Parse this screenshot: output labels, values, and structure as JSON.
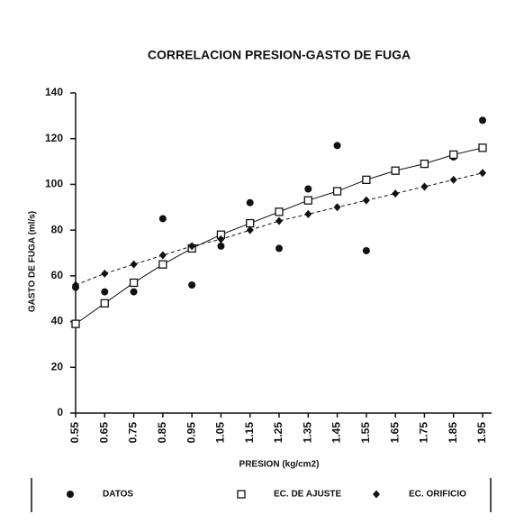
{
  "chart_data": {
    "type": "line",
    "title": "CORRELACION PRESION-GASTO DE FUGA",
    "x_label": "PRESION (kg/cm2)",
    "y_label": "GASTO DE FUGA (ml/s)",
    "categories": [
      "0.55",
      "0.65",
      "0.75",
      "0.85",
      "0.95",
      "1.05",
      "1.15",
      "1.25",
      "1.35",
      "1.45",
      "1.55",
      "1.65",
      "1.75",
      "1.85",
      "1.95"
    ],
    "series": [
      {
        "name": "DATOS",
        "color": "#111111",
        "marker": "circle",
        "line": false,
        "values": [
          55,
          53,
          53,
          85,
          56,
          73,
          92,
          72,
          98,
          117,
          71,
          null,
          null,
          112,
          128
        ]
      },
      {
        "name": "EC. DE AJUSTE",
        "color": "#111111",
        "marker": "square",
        "line": true,
        "values": [
          39,
          48,
          57,
          65,
          72,
          78,
          83,
          88,
          93,
          97,
          102,
          106,
          109,
          113,
          116
        ]
      },
      {
        "name": "EC. ORIFICIO",
        "color": "#111111",
        "marker": "diamond",
        "line": true,
        "values": [
          56,
          61,
          65,
          69,
          73,
          76,
          80,
          84,
          87,
          90,
          93,
          96,
          99,
          102,
          105
        ]
      }
    ],
    "ylim": [
      0,
      140
    ],
    "yticks": [
      0,
      20,
      40,
      60,
      80,
      100,
      120,
      140
    ],
    "legend": "bottom"
  }
}
